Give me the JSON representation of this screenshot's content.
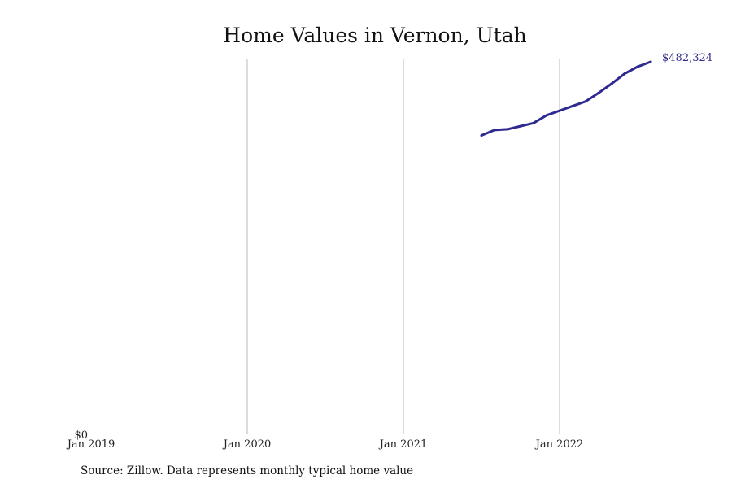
{
  "chart_data": {
    "type": "line",
    "title": "Home Values in Vernon, Utah",
    "xlabel": "",
    "ylabel": "",
    "x_ticks": [
      "Jan 2019",
      "Jan 2020",
      "Jan 2021",
      "Jan 2022"
    ],
    "y_ticks": [
      "$0"
    ],
    "xlim": [
      "2019-01",
      "2022-12"
    ],
    "ylim": [
      0,
      482324
    ],
    "grid": "vertical",
    "series": [
      {
        "color": "#2e2a8f",
        "points": [
          {
            "x": "2021-07",
            "y": 387000
          },
          {
            "x": "2021-08",
            "y": 394000
          },
          {
            "x": "2021-09",
            "y": 395000
          },
          {
            "x": "2021-10",
            "y": 399000
          },
          {
            "x": "2021-11",
            "y": 403000
          },
          {
            "x": "2021-12",
            "y": 413000
          },
          {
            "x": "2022-01",
            "y": 419000
          },
          {
            "x": "2022-02",
            "y": 425000
          },
          {
            "x": "2022-03",
            "y": 431000
          },
          {
            "x": "2022-04",
            "y": 442000
          },
          {
            "x": "2022-05",
            "y": 454000
          },
          {
            "x": "2022-06",
            "y": 467000
          },
          {
            "x": "2022-07",
            "y": 476000
          },
          {
            "x": "2022-08",
            "y": 482324
          }
        ],
        "end_label": "$482,324"
      }
    ]
  },
  "footer": {
    "source": "Source: Zillow. Data represents monthly typical home value"
  }
}
